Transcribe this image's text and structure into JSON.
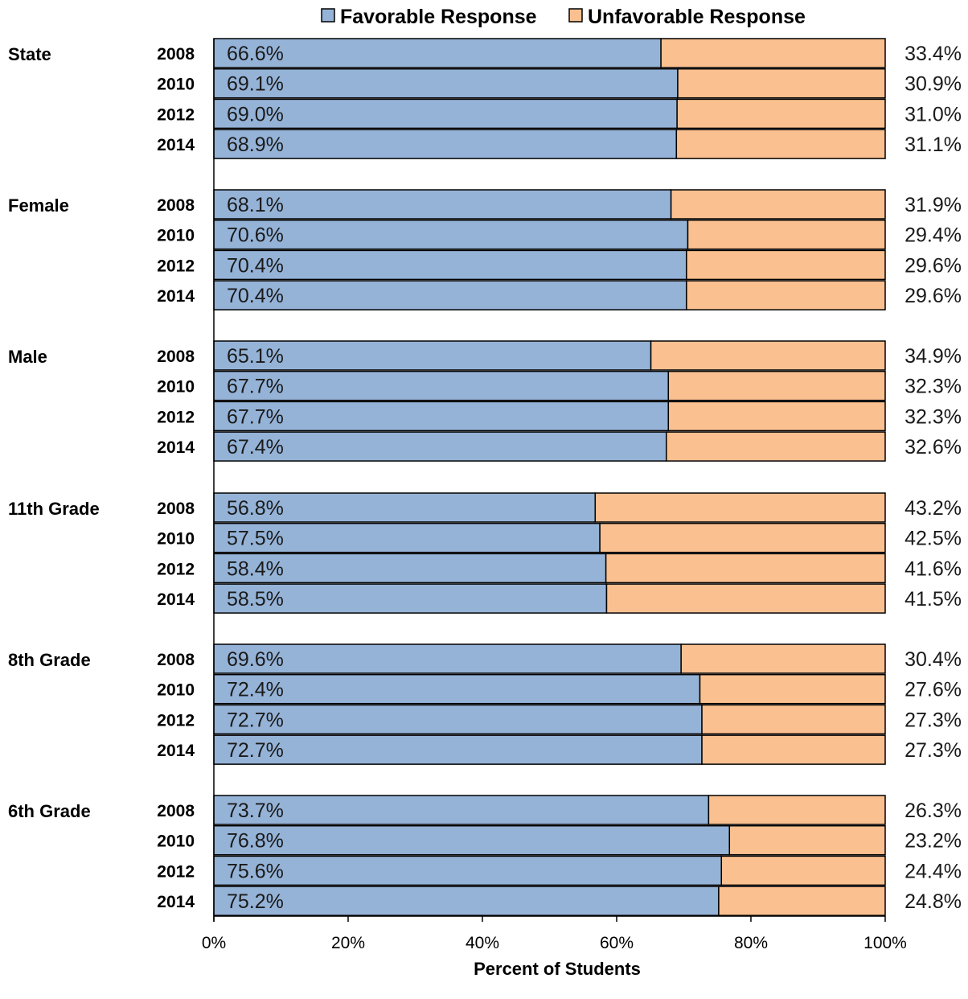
{
  "chart_data": {
    "type": "bar",
    "orientation": "horizontal",
    "stacked": true,
    "xlabel": "Percent of Students",
    "xlim": [
      0,
      100
    ],
    "x_ticks": [
      "0%",
      "20%",
      "40%",
      "60%",
      "80%",
      "100%"
    ],
    "legend": {
      "placement": "top"
    },
    "series": [
      {
        "name": "Favorable Response",
        "color": "#95b3d7"
      },
      {
        "name": "Unfavorable Response",
        "color": "#fac090"
      }
    ],
    "groups": [
      {
        "name": "State",
        "rows": [
          {
            "year": "2008",
            "favorable": 66.6,
            "unfavorable": 33.4,
            "favorable_label": "66.6%",
            "unfavorable_label": "33.4%"
          },
          {
            "year": "2010",
            "favorable": 69.1,
            "unfavorable": 30.9,
            "favorable_label": "69.1%",
            "unfavorable_label": "30.9%"
          },
          {
            "year": "2012",
            "favorable": 69.0,
            "unfavorable": 31.0,
            "favorable_label": "69.0%",
            "unfavorable_label": "31.0%"
          },
          {
            "year": "2014",
            "favorable": 68.9,
            "unfavorable": 31.1,
            "favorable_label": "68.9%",
            "unfavorable_label": "31.1%"
          }
        ]
      },
      {
        "name": "Female",
        "rows": [
          {
            "year": "2008",
            "favorable": 68.1,
            "unfavorable": 31.9,
            "favorable_label": "68.1%",
            "unfavorable_label": "31.9%"
          },
          {
            "year": "2010",
            "favorable": 70.6,
            "unfavorable": 29.4,
            "favorable_label": "70.6%",
            "unfavorable_label": "29.4%"
          },
          {
            "year": "2012",
            "favorable": 70.4,
            "unfavorable": 29.6,
            "favorable_label": "70.4%",
            "unfavorable_label": "29.6%"
          },
          {
            "year": "2014",
            "favorable": 70.4,
            "unfavorable": 29.6,
            "favorable_label": "70.4%",
            "unfavorable_label": "29.6%"
          }
        ]
      },
      {
        "name": "Male",
        "rows": [
          {
            "year": "2008",
            "favorable": 65.1,
            "unfavorable": 34.9,
            "favorable_label": "65.1%",
            "unfavorable_label": "34.9%"
          },
          {
            "year": "2010",
            "favorable": 67.7,
            "unfavorable": 32.3,
            "favorable_label": "67.7%",
            "unfavorable_label": "32.3%"
          },
          {
            "year": "2012",
            "favorable": 67.7,
            "unfavorable": 32.3,
            "favorable_label": "67.7%",
            "unfavorable_label": "32.3%"
          },
          {
            "year": "2014",
            "favorable": 67.4,
            "unfavorable": 32.6,
            "favorable_label": "67.4%",
            "unfavorable_label": "32.6%"
          }
        ]
      },
      {
        "name": "11th Grade",
        "rows": [
          {
            "year": "2008",
            "favorable": 56.8,
            "unfavorable": 43.2,
            "favorable_label": "56.8%",
            "unfavorable_label": "43.2%"
          },
          {
            "year": "2010",
            "favorable": 57.5,
            "unfavorable": 42.5,
            "favorable_label": "57.5%",
            "unfavorable_label": "42.5%"
          },
          {
            "year": "2012",
            "favorable": 58.4,
            "unfavorable": 41.6,
            "favorable_label": "58.4%",
            "unfavorable_label": "41.6%"
          },
          {
            "year": "2014",
            "favorable": 58.5,
            "unfavorable": 41.5,
            "favorable_label": "58.5%",
            "unfavorable_label": "41.5%"
          }
        ]
      },
      {
        "name": "8th Grade",
        "rows": [
          {
            "year": "2008",
            "favorable": 69.6,
            "unfavorable": 30.4,
            "favorable_label": "69.6%",
            "unfavorable_label": "30.4%"
          },
          {
            "year": "2010",
            "favorable": 72.4,
            "unfavorable": 27.6,
            "favorable_label": "72.4%",
            "unfavorable_label": "27.6%"
          },
          {
            "year": "2012",
            "favorable": 72.7,
            "unfavorable": 27.3,
            "favorable_label": "72.7%",
            "unfavorable_label": "27.3%"
          },
          {
            "year": "2014",
            "favorable": 72.7,
            "unfavorable": 27.3,
            "favorable_label": "72.7%",
            "unfavorable_label": "27.3%"
          }
        ]
      },
      {
        "name": "6th Grade",
        "rows": [
          {
            "year": "2008",
            "favorable": 73.7,
            "unfavorable": 26.3,
            "favorable_label": "73.7%",
            "unfavorable_label": "26.3%"
          },
          {
            "year": "2010",
            "favorable": 76.8,
            "unfavorable": 23.2,
            "favorable_label": "76.8%",
            "unfavorable_label": "23.2%"
          },
          {
            "year": "2012",
            "favorable": 75.6,
            "unfavorable": 24.4,
            "favorable_label": "75.6%",
            "unfavorable_label": "24.4%"
          },
          {
            "year": "2014",
            "favorable": 75.2,
            "unfavorable": 24.8,
            "favorable_label": "75.2%",
            "unfavorable_label": "24.8%"
          }
        ]
      }
    ]
  }
}
